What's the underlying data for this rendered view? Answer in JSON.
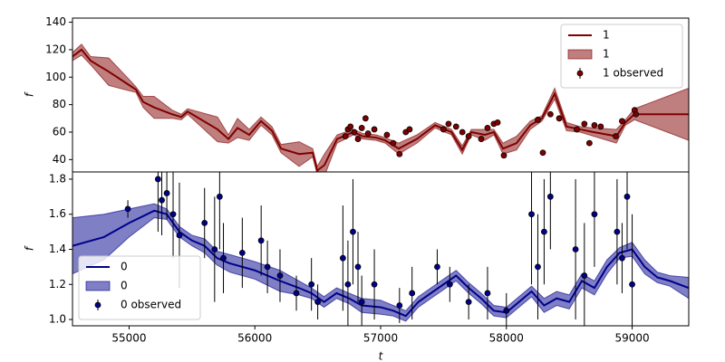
{
  "chart_data": [
    {
      "type": "line",
      "ylabel": "f",
      "xlim": [
        54550,
        59450
      ],
      "ylim": [
        31,
        143
      ],
      "yticks": [
        40,
        60,
        80,
        100,
        120,
        140
      ],
      "legend": "upper right",
      "series": [
        {
          "name": "1",
          "style": "line",
          "color": "#800000",
          "x": [
            54550,
            54622,
            54694,
            54838,
            55004,
            55054,
            55112,
            55199,
            55343,
            55415,
            55465,
            55703,
            55790,
            55862,
            55955,
            56049,
            56136,
            56208,
            56352,
            56460,
            56496,
            56553,
            56654,
            56784,
            56856,
            56964,
            57036,
            57144,
            57289,
            57433,
            57563,
            57649,
            57721,
            57829,
            57901,
            57973,
            58081,
            58190,
            58283,
            58384,
            58478,
            58586,
            58694,
            58874,
            58946,
            59018,
            59450
          ],
          "values": [
            115,
            120,
            112,
            104,
            94,
            91,
            82,
            78,
            73,
            71,
            75,
            62,
            55,
            63,
            58,
            68,
            61,
            48,
            44,
            45,
            32,
            36,
            55,
            60,
            57,
            56,
            54,
            48,
            55,
            65,
            60,
            47,
            60,
            58,
            60,
            48,
            52,
            65,
            70,
            88,
            64,
            62,
            60,
            57,
            67,
            73,
            73
          ]
        },
        {
          "name": "1",
          "style": "band",
          "color": "#800000",
          "x": [
            54550,
            54622,
            54694,
            54838,
            55004,
            55054,
            55112,
            55199,
            55343,
            55415,
            55465,
            55703,
            55790,
            55862,
            55955,
            56049,
            56136,
            56208,
            56352,
            56460,
            56496,
            56553,
            56654,
            56784,
            56856,
            56964,
            57036,
            57144,
            57289,
            57433,
            57563,
            57649,
            57721,
            57829,
            57901,
            57973,
            58081,
            58190,
            58283,
            58384,
            58478,
            58586,
            58694,
            58874,
            58946,
            59018,
            59450
          ],
          "lower": [
            112,
            116,
            109,
            94,
            90,
            89,
            78,
            70,
            70,
            69,
            73,
            53,
            52,
            56,
            54,
            65,
            58,
            45,
            35,
            42,
            29,
            28,
            52,
            58,
            55,
            54,
            52,
            44,
            52,
            63,
            58,
            44,
            58,
            54,
            58,
            44,
            47,
            62,
            68,
            84,
            61,
            60,
            57,
            52,
            65,
            69,
            54
          ],
          "upper": [
            118,
            124,
            115,
            114,
            98,
            93,
            86,
            86,
            76,
            73,
            77,
            71,
            58,
            70,
            62,
            71,
            64,
            51,
            53,
            48,
            35,
            44,
            58,
            62,
            59,
            58,
            56,
            52,
            58,
            67,
            62,
            50,
            62,
            62,
            62,
            52,
            57,
            68,
            72,
            92,
            67,
            64,
            63,
            62,
            69,
            77,
            92
          ]
        },
        {
          "name": "1 observed",
          "style": "errorbar",
          "color": "#800000",
          "x": [
            56720,
            56740,
            56760,
            56790,
            56820,
            56850,
            56880,
            56900,
            56950,
            57050,
            57100,
            57150,
            57200,
            57230,
            57500,
            57540,
            57600,
            57650,
            57700,
            57800,
            57850,
            57900,
            57930,
            57980,
            58250,
            58290,
            58350,
            58420,
            58560,
            58620,
            58660,
            58700,
            58750,
            58870,
            58920,
            59020,
            59030
          ],
          "values": [
            57,
            62,
            64,
            60,
            55,
            63,
            70,
            59,
            62,
            58,
            52,
            44,
            60,
            62,
            62,
            66,
            64,
            60,
            57,
            55,
            63,
            66,
            67,
            43,
            69,
            45,
            73,
            70,
            62,
            66,
            52,
            65,
            64,
            57,
            68,
            76,
            73
          ],
          "errors": [
            2,
            2,
            2,
            2,
            2,
            2,
            2,
            2,
            2,
            2,
            2,
            2,
            2,
            2,
            2,
            2,
            2,
            2,
            2,
            2,
            2,
            2,
            2,
            2,
            2,
            2,
            2,
            2,
            2,
            2,
            2,
            2,
            2,
            2,
            2,
            2,
            2
          ]
        }
      ]
    },
    {
      "type": "line",
      "ylabel": "f",
      "xlabel": "t",
      "xlim": [
        54550,
        59450
      ],
      "xticks": [
        55000,
        56000,
        57000,
        58000,
        59000
      ],
      "ylim": [
        0.964,
        1.841
      ],
      "yticks": [
        {
          "value": 1.0,
          "label": "1.0"
        },
        1.2,
        1.4,
        1.6,
        1.8
      ],
      "legend": "lower left",
      "series": [
        {
          "name": "0",
          "style": "line",
          "color": "#00008b",
          "x": [
            54550,
            54800,
            55000,
            55200,
            55300,
            55400,
            55500,
            55600,
            55700,
            55800,
            56000,
            56200,
            56350,
            56450,
            56550,
            56650,
            56750,
            56850,
            57000,
            57100,
            57200,
            57300,
            57400,
            57500,
            57600,
            57700,
            57800,
            57900,
            58000,
            58100,
            58200,
            58300,
            58400,
            58500,
            58600,
            58700,
            58800,
            58900,
            59000,
            59100,
            59200,
            59300,
            59450
          ],
          "values": [
            1.42,
            1.47,
            1.55,
            1.62,
            1.6,
            1.5,
            1.45,
            1.42,
            1.35,
            1.32,
            1.28,
            1.22,
            1.18,
            1.15,
            1.1,
            1.15,
            1.12,
            1.08,
            1.07,
            1.05,
            1.02,
            1.1,
            1.15,
            1.2,
            1.25,
            1.18,
            1.12,
            1.05,
            1.04,
            1.1,
            1.16,
            1.08,
            1.12,
            1.1,
            1.22,
            1.18,
            1.3,
            1.38,
            1.4,
            1.3,
            1.24,
            1.22,
            1.18
          ]
        },
        {
          "name": "0",
          "style": "band",
          "color": "#00008b",
          "x": [
            54550,
            54800,
            55000,
            55200,
            55300,
            55400,
            55500,
            55600,
            55700,
            55800,
            56000,
            56200,
            56350,
            56450,
            56550,
            56650,
            56750,
            56850,
            57000,
            57100,
            57200,
            57300,
            57400,
            57500,
            57600,
            57700,
            57800,
            57900,
            58000,
            58100,
            58200,
            58300,
            58400,
            58500,
            58600,
            58700,
            58800,
            58900,
            59000,
            59100,
            59200,
            59300,
            59450
          ],
          "lower": [
            1.26,
            1.34,
            1.47,
            1.58,
            1.57,
            1.47,
            1.42,
            1.38,
            1.31,
            1.27,
            1.23,
            1.16,
            1.14,
            1.12,
            1.07,
            1.12,
            1.09,
            1.04,
            1.03,
            1.02,
            0.99,
            1.07,
            1.12,
            1.17,
            1.22,
            1.15,
            1.09,
            1.02,
            1.01,
            1.07,
            1.13,
            1.04,
            1.08,
            1.06,
            1.18,
            1.14,
            1.26,
            1.35,
            1.36,
            1.26,
            1.21,
            1.19,
            1.12
          ],
          "upper": [
            1.58,
            1.6,
            1.63,
            1.66,
            1.63,
            1.53,
            1.48,
            1.46,
            1.39,
            1.37,
            1.33,
            1.28,
            1.22,
            1.18,
            1.13,
            1.18,
            1.15,
            1.12,
            1.11,
            1.08,
            1.05,
            1.13,
            1.18,
            1.23,
            1.28,
            1.21,
            1.15,
            1.08,
            1.07,
            1.13,
            1.19,
            1.12,
            1.16,
            1.14,
            1.26,
            1.22,
            1.34,
            1.41,
            1.44,
            1.34,
            1.27,
            1.25,
            1.24
          ]
        },
        {
          "name": "0 observed",
          "style": "errorbar",
          "color": "#00008b",
          "x": [
            54990,
            55230,
            55260,
            55300,
            55350,
            55400,
            55600,
            55680,
            55720,
            55750,
            55900,
            56050,
            56100,
            56200,
            56330,
            56450,
            56500,
            56700,
            56740,
            56780,
            56820,
            56850,
            56950,
            57150,
            57250,
            57450,
            57550,
            57700,
            57850,
            58000,
            58200,
            58250,
            58300,
            58350,
            58550,
            58620,
            58700,
            58880,
            58920,
            58960,
            59000
          ],
          "values": [
            1.63,
            1.8,
            1.68,
            1.72,
            1.6,
            1.48,
            1.55,
            1.4,
            1.7,
            1.35,
            1.38,
            1.45,
            1.3,
            1.25,
            1.15,
            1.2,
            1.1,
            1.35,
            1.2,
            1.5,
            1.3,
            1.1,
            1.2,
            1.08,
            1.15,
            1.3,
            1.2,
            1.1,
            1.15,
            1.05,
            1.6,
            1.3,
            1.5,
            1.7,
            1.4,
            1.25,
            1.6,
            1.5,
            1.35,
            1.7,
            1.2
          ],
          "errors": [
            0.05,
            0.3,
            0.2,
            0.15,
            0.25,
            0.3,
            0.2,
            0.3,
            0.3,
            0.2,
            0.2,
            0.2,
            0.15,
            0.15,
            0.1,
            0.15,
            0.1,
            0.3,
            0.25,
            0.3,
            0.2,
            0.15,
            0.2,
            0.1,
            0.15,
            0.1,
            0.1,
            0.1,
            0.15,
            0.1,
            0.4,
            0.3,
            0.3,
            0.3,
            0.4,
            0.3,
            0.3,
            0.3,
            0.2,
            0.3,
            0.4
          ]
        }
      ]
    }
  ]
}
